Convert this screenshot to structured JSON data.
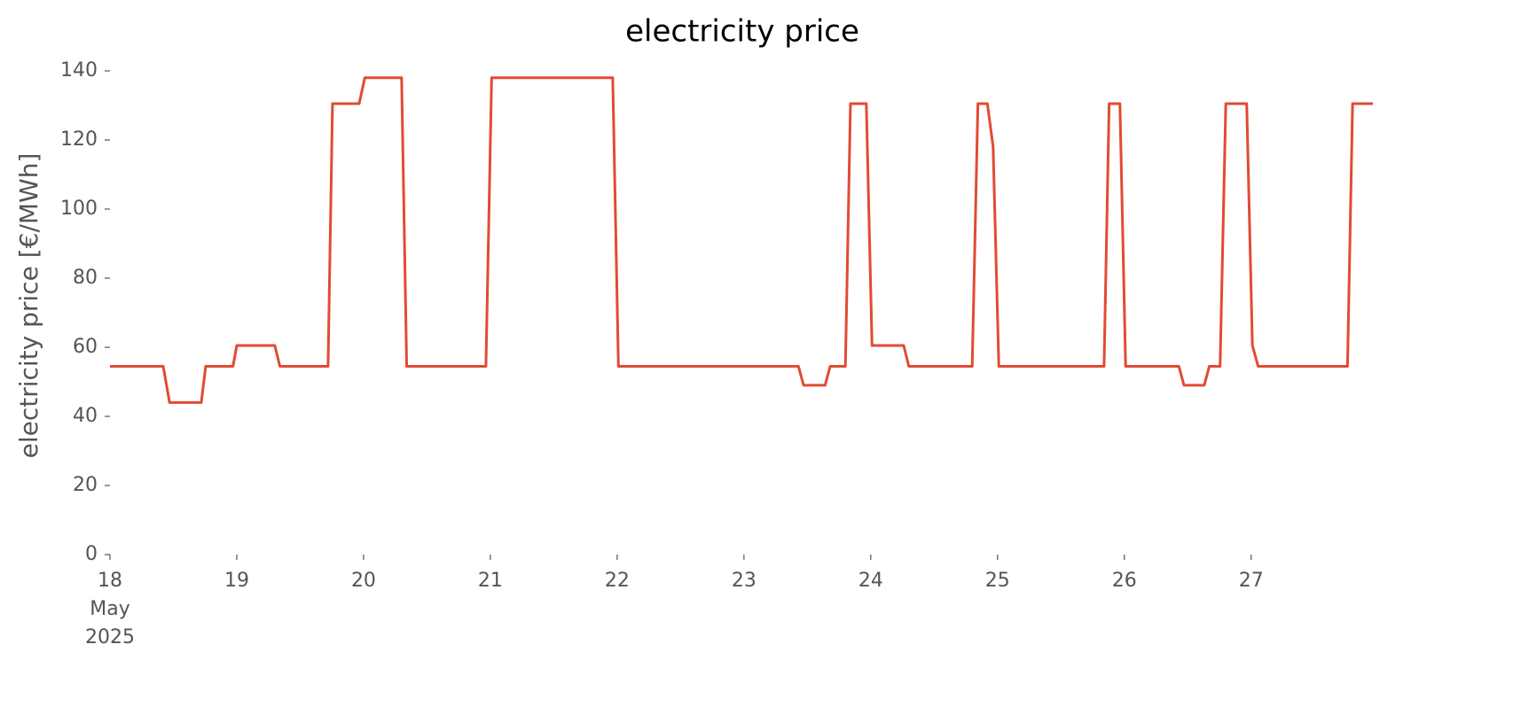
{
  "chart_data": {
    "type": "line",
    "title": "electricity price",
    "y_label": "electricity price [€/MWh]",
    "x": [
      18.0,
      18.42,
      18.47,
      18.72,
      18.755,
      18.97,
      19.0,
      19.3,
      19.34,
      19.72,
      19.755,
      19.965,
      20.01,
      20.3,
      20.34,
      20.965,
      21.01,
      21.965,
      22.01,
      23.43,
      23.47,
      23.64,
      23.68,
      23.8,
      23.84,
      23.965,
      24.01,
      24.26,
      24.3,
      24.8,
      24.845,
      24.92,
      24.965,
      25.01,
      25.84,
      25.88,
      25.965,
      26.01,
      26.43,
      26.47,
      26.63,
      26.67,
      26.755,
      26.8,
      26.965,
      27.01,
      27.055,
      27.76,
      27.8,
      27.96
    ],
    "series": [
      {
        "name": "electricity price",
        "color": "#e24a33",
        "values": [
          54.5,
          54.5,
          44,
          44,
          54.5,
          54.5,
          60.5,
          60.5,
          54.5,
          54.5,
          130.5,
          130.5,
          138,
          138,
          54.5,
          54.5,
          138,
          138,
          54.5,
          54.5,
          49,
          49,
          54.5,
          54.5,
          130.5,
          130.5,
          60.5,
          60.5,
          54.5,
          54.5,
          130.5,
          130.5,
          118,
          54.5,
          54.5,
          130.5,
          130.5,
          54.5,
          54.5,
          49,
          49,
          54.5,
          54.5,
          130.5,
          130.5,
          60.5,
          54.5,
          54.5,
          130.5,
          130.5
        ]
      }
    ],
    "xlim": [
      18,
      27.96
    ],
    "xticks": [
      {
        "value": 18,
        "label": [
          "18",
          "May",
          "2025"
        ]
      },
      19,
      20,
      21,
      22,
      23,
      24,
      25,
      26,
      27
    ],
    "ylim": [
      0,
      140
    ],
    "yticks": [
      0,
      20,
      40,
      60,
      80,
      100,
      120,
      140
    ],
    "grid": false
  }
}
